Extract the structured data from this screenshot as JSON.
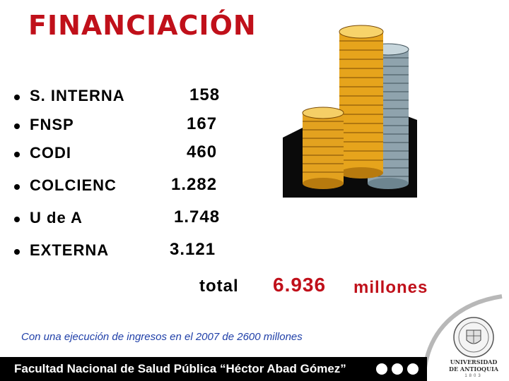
{
  "header": {
    "title": "FINANCIACIÓN"
  },
  "funding": {
    "items": [
      {
        "label": "S. INTERNA",
        "value": "158"
      },
      {
        "label": "FNSP",
        "value": "167"
      },
      {
        "label": "CODI",
        "value": "460"
      },
      {
        "label": "COLCIENC",
        "value": "1.282"
      },
      {
        "label": "U de A",
        "value": "1.748"
      },
      {
        "label": "EXTERNA",
        "value": "3.121"
      }
    ],
    "total_label": "total",
    "total_value": "6.936",
    "total_unit": "millones"
  },
  "footnote": "Con una ejecución de ingresos en el 2007 de 2600 millones",
  "footer": {
    "text": "Facultad Nacional de Salud Pública “Héctor Abad Gómez”"
  },
  "logo": {
    "line1": "UNIVERSIDAD",
    "line2": "DE ANTIOQUIA",
    "year": "1803"
  },
  "colors": {
    "title": "#c0101a",
    "footnote": "#1f3fa8",
    "footer_bg": "#000000"
  },
  "icons": [
    "coin-stacks-icon",
    "university-seal-icon"
  ]
}
